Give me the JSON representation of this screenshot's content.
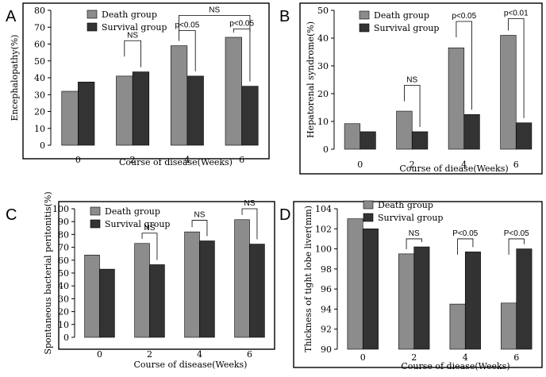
{
  "colors": {
    "death": "#8c8c8c",
    "survival": "#333333",
    "frame": "#000000"
  },
  "chart_data": [
    {
      "panel": "A",
      "type": "bar",
      "categories": [
        "0",
        "2",
        "4",
        "6"
      ],
      "series": [
        {
          "name": "Death group",
          "values": [
            32,
            41,
            59,
            64
          ]
        },
        {
          "name": "Survival group",
          "values": [
            37.5,
            43.5,
            41,
            35
          ]
        }
      ],
      "xlabel": "Course of disease(Weeks)",
      "ylabel": "Encephalopathy(%)",
      "ylim": [
        0,
        80
      ],
      "yticks": [
        0,
        10,
        20,
        30,
        40,
        50,
        60,
        70,
        80
      ],
      "legend": "top-left",
      "grid": false,
      "annotations": [
        {
          "text": "NS",
          "from": 1,
          "to": 1,
          "level": 62
        },
        {
          "text": "p<0.05",
          "from": 2,
          "to": 2,
          "level": 68
        },
        {
          "text": "p<0.05",
          "from": 3,
          "to": 3,
          "level": 69
        },
        {
          "text": "NS",
          "from": 2,
          "to": 3,
          "level": 77
        }
      ]
    },
    {
      "panel": "B",
      "type": "bar",
      "categories": [
        "0",
        "2",
        "4",
        "6"
      ],
      "series": [
        {
          "name": "Death group",
          "values": [
            9.2,
            13.7,
            36.5,
            41
          ]
        },
        {
          "name": "Survival group",
          "values": [
            6.3,
            6.3,
            12.5,
            9.5
          ]
        }
      ],
      "xlabel": "Course of diease(Weeks)",
      "ylabel": "Hepatorenal syndrome(%)",
      "ylim": [
        0,
        50
      ],
      "yticks": [
        0,
        10,
        20,
        30,
        40,
        50
      ],
      "legend": "top-right",
      "grid": false,
      "annotations": [
        {
          "text": "NS",
          "from": 1,
          "to": 1,
          "level": 23
        },
        {
          "text": "p<0.05",
          "from": 2,
          "to": 2,
          "level": 46
        },
        {
          "text": "p<0.01",
          "from": 3,
          "to": 3,
          "level": 47
        }
      ]
    },
    {
      "panel": "C",
      "type": "bar",
      "categories": [
        "0",
        "2",
        "4",
        "6"
      ],
      "series": [
        {
          "name": "Death group",
          "values": [
            64,
            73,
            82,
            91.5
          ]
        },
        {
          "name": "Survival group",
          "values": [
            53,
            56.5,
            75,
            72.5
          ]
        }
      ],
      "xlabel": "Course of disease(Weeks)",
      "ylabel": "Spontaneous bacterial peritonitis(%)",
      "ylim": [
        0,
        100
      ],
      "yticks": [
        0,
        10,
        20,
        30,
        40,
        50,
        60,
        70,
        80,
        90,
        100
      ],
      "legend": "top-left",
      "grid": false,
      "annotations": [
        {
          "text": "NS",
          "from": 1,
          "to": 1,
          "level": 81
        },
        {
          "text": "NS",
          "from": 2,
          "to": 2,
          "level": 91
        },
        {
          "text": "NS",
          "from": 3,
          "to": 3,
          "level": 100
        }
      ]
    },
    {
      "panel": "D",
      "type": "bar",
      "categories": [
        "0",
        "2",
        "4",
        "6"
      ],
      "series": [
        {
          "name": "Death group",
          "values": [
            103,
            99.5,
            94.5,
            94.6
          ]
        },
        {
          "name": "Survival group",
          "values": [
            102,
            100.2,
            99.7,
            100
          ]
        }
      ],
      "xlabel": "Course of diease(Weeks)",
      "ylabel": "Thickness of tight lobe liver(mm)",
      "ylim": [
        90,
        104
      ],
      "yticks": [
        90,
        92,
        94,
        96,
        98,
        100,
        102,
        104
      ],
      "legend": "top-left",
      "grid": false,
      "annotations": [
        {
          "text": "NS",
          "from": 1,
          "to": 1,
          "level": 101
        },
        {
          "text": "P<0.05",
          "from": 2,
          "to": 2,
          "level": 101
        },
        {
          "text": "P<0.05",
          "from": 3,
          "to": 3,
          "level": 101
        }
      ]
    }
  ]
}
